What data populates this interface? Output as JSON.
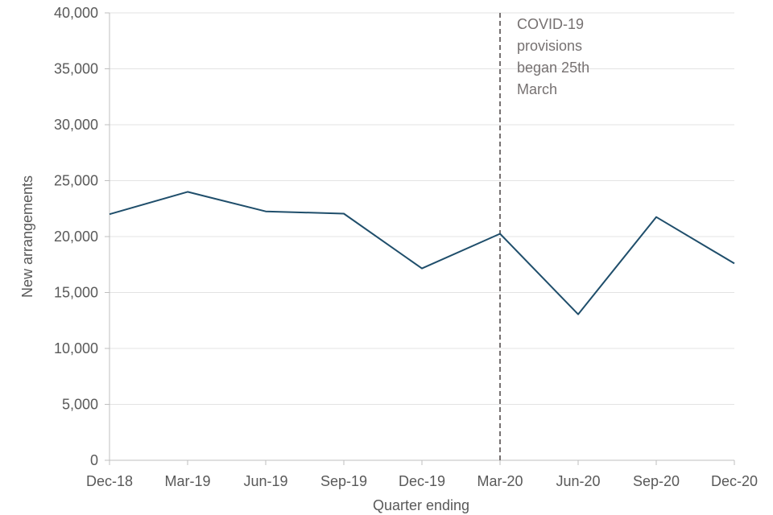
{
  "chart_data": {
    "type": "line",
    "title": "",
    "xlabel": "Quarter ending",
    "ylabel": "New arrangements",
    "categories": [
      "Dec-18",
      "Mar-19",
      "Jun-19",
      "Sep-19",
      "Dec-19",
      "Mar-20",
      "Jun-20",
      "Sep-20",
      "Dec-20"
    ],
    "series": [
      {
        "values": [
          22000,
          24000,
          22250,
          22050,
          17150,
          20250,
          13050,
          21750,
          17600
        ]
      }
    ],
    "ylim": [
      0,
      40000
    ],
    "yticks": [
      0,
      5000,
      10000,
      15000,
      20000,
      25000,
      30000,
      35000,
      40000
    ],
    "ytick_labels": [
      "0",
      "5,000",
      "10,000",
      "15,000",
      "20,000",
      "25,000",
      "30,000",
      "35,000",
      "40,000"
    ],
    "grid": true,
    "legend": "none",
    "line_color": "#1f4e6b",
    "annotation": {
      "at_category": "Mar-20",
      "style": "dashed vertical line",
      "lines": [
        "COVID-19",
        "provisions",
        "began 25th",
        "March"
      ]
    }
  }
}
